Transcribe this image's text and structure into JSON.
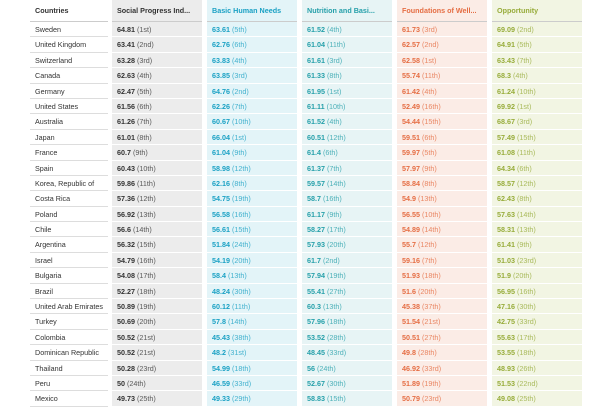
{
  "table": {
    "columns": [
      "Countries",
      "Social Progress Ind...",
      "Basic Human Needs",
      "Nutrition and Basi...",
      "Foundations of Well...",
      "Opportunity"
    ],
    "rows": [
      {
        "country": "Sweden",
        "cells": [
          [
            "64.81",
            "(1st)"
          ],
          [
            "63.61",
            "(5th)"
          ],
          [
            "61.52",
            "(4th)"
          ],
          [
            "61.73",
            "(3rd)"
          ],
          [
            "69.09",
            "(2nd)"
          ]
        ]
      },
      {
        "country": "United Kingdom",
        "cells": [
          [
            "63.41",
            "(2nd)"
          ],
          [
            "62.76",
            "(6th)"
          ],
          [
            "61.04",
            "(11th)"
          ],
          [
            "62.57",
            "(2nd)"
          ],
          [
            "64.91",
            "(5th)"
          ]
        ]
      },
      {
        "country": "Switzerland",
        "cells": [
          [
            "63.28",
            "(3rd)"
          ],
          [
            "63.83",
            "(4th)"
          ],
          [
            "61.61",
            "(3rd)"
          ],
          [
            "62.58",
            "(1st)"
          ],
          [
            "63.43",
            "(7th)"
          ]
        ]
      },
      {
        "country": "Canada",
        "cells": [
          [
            "62.63",
            "(4th)"
          ],
          [
            "63.85",
            "(3rd)"
          ],
          [
            "61.33",
            "(8th)"
          ],
          [
            "55.74",
            "(11th)"
          ],
          [
            "68.3",
            "(4th)"
          ]
        ]
      },
      {
        "country": "Germany",
        "cells": [
          [
            "62.47",
            "(5th)"
          ],
          [
            "64.76",
            "(2nd)"
          ],
          [
            "61.95",
            "(1st)"
          ],
          [
            "61.42",
            "(4th)"
          ],
          [
            "61.24",
            "(10th)"
          ]
        ]
      },
      {
        "country": "United States",
        "cells": [
          [
            "61.56",
            "(6th)"
          ],
          [
            "62.26",
            "(7th)"
          ],
          [
            "61.11",
            "(10th)"
          ],
          [
            "52.49",
            "(16th)"
          ],
          [
            "69.92",
            "(1st)"
          ]
        ]
      },
      {
        "country": "Australia",
        "cells": [
          [
            "61.26",
            "(7th)"
          ],
          [
            "60.67",
            "(10th)"
          ],
          [
            "61.52",
            "(4th)"
          ],
          [
            "54.44",
            "(15th)"
          ],
          [
            "68.67",
            "(3rd)"
          ]
        ]
      },
      {
        "country": "Japan",
        "cells": [
          [
            "61.01",
            "(8th)"
          ],
          [
            "66.04",
            "(1st)"
          ],
          [
            "60.51",
            "(12th)"
          ],
          [
            "59.51",
            "(6th)"
          ],
          [
            "57.49",
            "(15th)"
          ]
        ]
      },
      {
        "country": "France",
        "cells": [
          [
            "60.7",
            "(9th)"
          ],
          [
            "61.04",
            "(9th)"
          ],
          [
            "61.4",
            "(6th)"
          ],
          [
            "59.97",
            "(5th)"
          ],
          [
            "61.08",
            "(11th)"
          ]
        ]
      },
      {
        "country": "Spain",
        "cells": [
          [
            "60.43",
            "(10th)"
          ],
          [
            "58.98",
            "(12th)"
          ],
          [
            "61.37",
            "(7th)"
          ],
          [
            "57.97",
            "(9th)"
          ],
          [
            "64.34",
            "(6th)"
          ]
        ]
      },
      {
        "country": "Korea, Republic of",
        "cells": [
          [
            "59.86",
            "(11th)"
          ],
          [
            "62.16",
            "(8th)"
          ],
          [
            "59.57",
            "(14th)"
          ],
          [
            "58.84",
            "(8th)"
          ],
          [
            "58.57",
            "(12th)"
          ]
        ]
      },
      {
        "country": "Costa Rica",
        "cells": [
          [
            "57.36",
            "(12th)"
          ],
          [
            "54.75",
            "(19th)"
          ],
          [
            "58.7",
            "(16th)"
          ],
          [
            "54.9",
            "(13th)"
          ],
          [
            "62.43",
            "(8th)"
          ]
        ]
      },
      {
        "country": "Poland",
        "cells": [
          [
            "56.92",
            "(13th)"
          ],
          [
            "56.58",
            "(16th)"
          ],
          [
            "61.17",
            "(9th)"
          ],
          [
            "56.55",
            "(10th)"
          ],
          [
            "57.63",
            "(14th)"
          ]
        ]
      },
      {
        "country": "Chile",
        "cells": [
          [
            "56.6",
            "(14th)"
          ],
          [
            "56.61",
            "(15th)"
          ],
          [
            "58.27",
            "(17th)"
          ],
          [
            "54.89",
            "(14th)"
          ],
          [
            "58.31",
            "(13th)"
          ]
        ]
      },
      {
        "country": "Argentina",
        "cells": [
          [
            "56.32",
            "(15th)"
          ],
          [
            "51.84",
            "(24th)"
          ],
          [
            "57.93",
            "(20th)"
          ],
          [
            "55.7",
            "(12th)"
          ],
          [
            "61.41",
            "(9th)"
          ]
        ]
      },
      {
        "country": "Israel",
        "cells": [
          [
            "54.79",
            "(16th)"
          ],
          [
            "54.19",
            "(20th)"
          ],
          [
            "61.7",
            "(2nd)"
          ],
          [
            "59.16",
            "(7th)"
          ],
          [
            "51.03",
            "(23rd)"
          ]
        ]
      },
      {
        "country": "Bulgaria",
        "cells": [
          [
            "54.08",
            "(17th)"
          ],
          [
            "58.4",
            "(13th)"
          ],
          [
            "57.94",
            "(19th)"
          ],
          [
            "51.93",
            "(18th)"
          ],
          [
            "51.9",
            "(20th)"
          ]
        ]
      },
      {
        "country": "Brazil",
        "cells": [
          [
            "52.27",
            "(18th)"
          ],
          [
            "48.24",
            "(30th)"
          ],
          [
            "55.41",
            "(27th)"
          ],
          [
            "51.6",
            "(20th)"
          ],
          [
            "56.95",
            "(16th)"
          ]
        ]
      },
      {
        "country": "United Arab Emirates",
        "cells": [
          [
            "50.89",
            "(19th)"
          ],
          [
            "60.12",
            "(11th)"
          ],
          [
            "60.3",
            "(13th)"
          ],
          [
            "45.38",
            "(37th)"
          ],
          [
            "47.16",
            "(30th)"
          ]
        ]
      },
      {
        "country": "Turkey",
        "cells": [
          [
            "50.69",
            "(20th)"
          ],
          [
            "57.8",
            "(14th)"
          ],
          [
            "57.96",
            "(18th)"
          ],
          [
            "51.54",
            "(21st)"
          ],
          [
            "42.75",
            "(33rd)"
          ]
        ]
      },
      {
        "country": "Colombia",
        "cells": [
          [
            "50.52",
            "(21st)"
          ],
          [
            "45.43",
            "(38th)"
          ],
          [
            "53.52",
            "(28th)"
          ],
          [
            "50.51",
            "(27th)"
          ],
          [
            "55.63",
            "(17th)"
          ]
        ]
      },
      {
        "country": "Dominican Republic",
        "cells": [
          [
            "50.52",
            "(21st)"
          ],
          [
            "48.2",
            "(31st)"
          ],
          [
            "48.45",
            "(33rd)"
          ],
          [
            "49.8",
            "(28th)"
          ],
          [
            "53.55",
            "(18th)"
          ]
        ]
      },
      {
        "country": "Thailand",
        "cells": [
          [
            "50.28",
            "(23rd)"
          ],
          [
            "54.99",
            "(18th)"
          ],
          [
            "56",
            "(24th)"
          ],
          [
            "46.92",
            "(33rd)"
          ],
          [
            "48.93",
            "(26th)"
          ]
        ]
      },
      {
        "country": "Peru",
        "cells": [
          [
            "50",
            "(24th)"
          ],
          [
            "46.59",
            "(33rd)"
          ],
          [
            "52.67",
            "(30th)"
          ],
          [
            "51.89",
            "(19th)"
          ],
          [
            "51.53",
            "(22nd)"
          ]
        ]
      },
      {
        "country": "Mexico",
        "cells": [
          [
            "49.73",
            "(25th)"
          ],
          [
            "49.33",
            "(29th)"
          ],
          [
            "58.83",
            "(15th)"
          ],
          [
            "50.79",
            "(23rd)"
          ],
          [
            "49.08",
            "(25th)"
          ]
        ]
      }
    ]
  }
}
